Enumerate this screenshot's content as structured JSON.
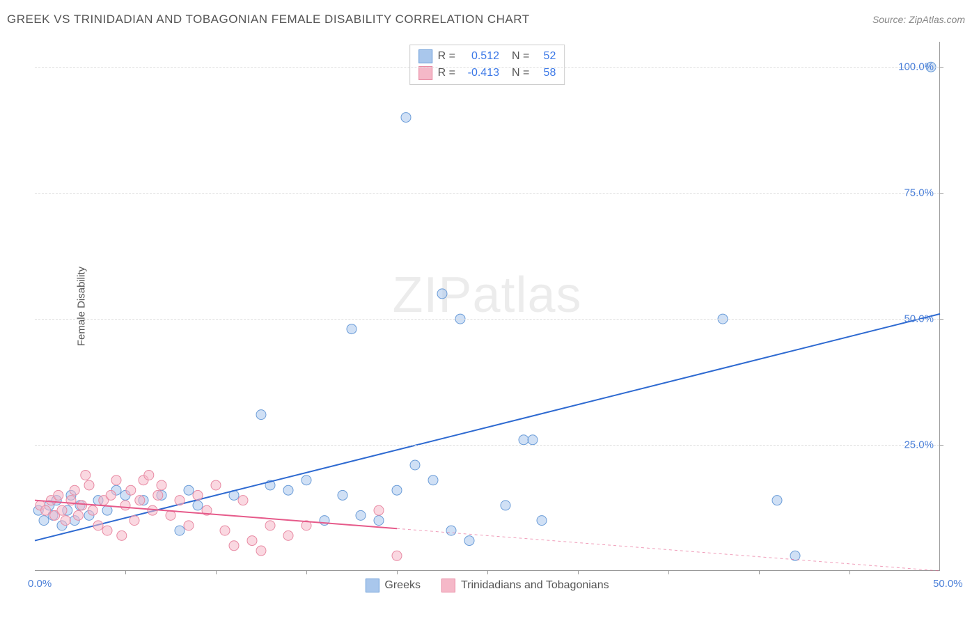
{
  "title": "GREEK VS TRINIDADIAN AND TOBAGONIAN FEMALE DISABILITY CORRELATION CHART",
  "source": "Source: ZipAtlas.com",
  "y_axis_label": "Female Disability",
  "watermark": "ZIPatlas",
  "chart": {
    "type": "scatter",
    "xlim": [
      0,
      50
    ],
    "ylim": [
      0,
      105
    ],
    "x_ticks": [
      0,
      50
    ],
    "x_tick_labels": [
      "0.0%",
      "50.0%"
    ],
    "x_minor_ticks": [
      5,
      10,
      15,
      20,
      25,
      30,
      35,
      40,
      45
    ],
    "y_ticks": [
      25,
      50,
      75,
      100
    ],
    "y_tick_labels": [
      "25.0%",
      "50.0%",
      "75.0%",
      "100.0%"
    ],
    "background_color": "#ffffff",
    "grid_color": "#dddddd",
    "axis_color": "#999999",
    "tick_label_color": "#4a7fd8",
    "marker_radius": 7,
    "marker_opacity": 0.55,
    "series": [
      {
        "name": "Greeks",
        "color_fill": "#a9c7ec",
        "color_stroke": "#6a9cd8",
        "R": "0.512",
        "N": "52",
        "trend": {
          "x1": 0,
          "y1": 6,
          "x2": 50,
          "y2": 51,
          "solid_until_x": 50,
          "color": "#2e6ad1",
          "width": 2
        },
        "points": [
          [
            0.2,
            12
          ],
          [
            0.5,
            10
          ],
          [
            0.8,
            13
          ],
          [
            1.0,
            11
          ],
          [
            1.2,
            14
          ],
          [
            1.5,
            9
          ],
          [
            1.8,
            12
          ],
          [
            2.0,
            15
          ],
          [
            2.2,
            10
          ],
          [
            2.5,
            13
          ],
          [
            3.0,
            11
          ],
          [
            3.5,
            14
          ],
          [
            4.0,
            12
          ],
          [
            4.5,
            16
          ],
          [
            5.0,
            15
          ],
          [
            6.0,
            14
          ],
          [
            7.0,
            15
          ],
          [
            8.0,
            8
          ],
          [
            8.5,
            16
          ],
          [
            9.0,
            13
          ],
          [
            11.0,
            15
          ],
          [
            12.5,
            31
          ],
          [
            13.0,
            17
          ],
          [
            14.0,
            16
          ],
          [
            15.0,
            18
          ],
          [
            16.0,
            10
          ],
          [
            17.0,
            15
          ],
          [
            17.5,
            48
          ],
          [
            18.0,
            11
          ],
          [
            19.0,
            10
          ],
          [
            20.0,
            16
          ],
          [
            20.5,
            90
          ],
          [
            21.0,
            21
          ],
          [
            22.0,
            18
          ],
          [
            22.5,
            55
          ],
          [
            23.0,
            8
          ],
          [
            23.5,
            50
          ],
          [
            24.0,
            6
          ],
          [
            26.0,
            13
          ],
          [
            27.0,
            26
          ],
          [
            27.5,
            26
          ],
          [
            28.0,
            10
          ],
          [
            38.0,
            50
          ],
          [
            41.0,
            14
          ],
          [
            42.0,
            3
          ],
          [
            49.5,
            100
          ]
        ]
      },
      {
        "name": "Trinidadians and Tobagonians",
        "color_fill": "#f5b8c8",
        "color_stroke": "#e88aa3",
        "R": "-0.413",
        "N": "58",
        "trend": {
          "x1": 0,
          "y1": 14,
          "x2": 50,
          "y2": 0,
          "solid_until_x": 20,
          "color": "#e65a8a",
          "width": 2
        },
        "points": [
          [
            0.3,
            13
          ],
          [
            0.6,
            12
          ],
          [
            0.9,
            14
          ],
          [
            1.1,
            11
          ],
          [
            1.3,
            15
          ],
          [
            1.5,
            12
          ],
          [
            1.7,
            10
          ],
          [
            2.0,
            14
          ],
          [
            2.2,
            16
          ],
          [
            2.4,
            11
          ],
          [
            2.6,
            13
          ],
          [
            2.8,
            19
          ],
          [
            3.0,
            17
          ],
          [
            3.2,
            12
          ],
          [
            3.5,
            9
          ],
          [
            3.8,
            14
          ],
          [
            4.0,
            8
          ],
          [
            4.2,
            15
          ],
          [
            4.5,
            18
          ],
          [
            4.8,
            7
          ],
          [
            5.0,
            13
          ],
          [
            5.3,
            16
          ],
          [
            5.5,
            10
          ],
          [
            5.8,
            14
          ],
          [
            6.0,
            18
          ],
          [
            6.3,
            19
          ],
          [
            6.5,
            12
          ],
          [
            6.8,
            15
          ],
          [
            7.0,
            17
          ],
          [
            7.5,
            11
          ],
          [
            8.0,
            14
          ],
          [
            8.5,
            9
          ],
          [
            9.0,
            15
          ],
          [
            9.5,
            12
          ],
          [
            10.0,
            17
          ],
          [
            10.5,
            8
          ],
          [
            11.0,
            5
          ],
          [
            11.5,
            14
          ],
          [
            12.0,
            6
          ],
          [
            12.5,
            4
          ],
          [
            13.0,
            9
          ],
          [
            14.0,
            7
          ],
          [
            15.0,
            9
          ],
          [
            19.0,
            12
          ],
          [
            20.0,
            3
          ]
        ]
      }
    ]
  },
  "legend_top": {
    "rows": [
      {
        "swatch_fill": "#a9c7ec",
        "swatch_stroke": "#6a9cd8",
        "r_lbl": "R =",
        "r_val": "0.512",
        "n_lbl": "N =",
        "n_val": "52"
      },
      {
        "swatch_fill": "#f5b8c8",
        "swatch_stroke": "#e88aa3",
        "r_lbl": "R =",
        "r_val": "-0.413",
        "n_lbl": "N =",
        "n_val": "58"
      }
    ]
  },
  "legend_bottom": {
    "items": [
      {
        "swatch_fill": "#a9c7ec",
        "swatch_stroke": "#6a9cd8",
        "label": "Greeks"
      },
      {
        "swatch_fill": "#f5b8c8",
        "swatch_stroke": "#e88aa3",
        "label": "Trinidadians and Tobagonians"
      }
    ]
  }
}
